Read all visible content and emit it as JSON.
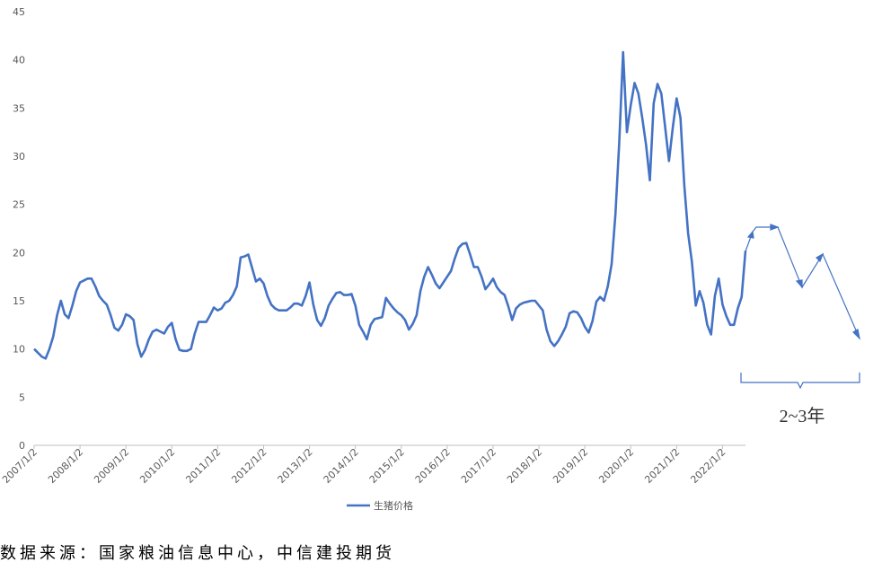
{
  "chart_data": {
    "type": "line",
    "categories": [
      "2007/1/2",
      null,
      null,
      null,
      null,
      null,
      null,
      null,
      null,
      null,
      null,
      null,
      "2008/1/2",
      null,
      null,
      null,
      null,
      null,
      null,
      null,
      null,
      null,
      null,
      null,
      "2009/1/2",
      null,
      null,
      null,
      null,
      null,
      null,
      null,
      null,
      null,
      null,
      null,
      "2010/1/2",
      null,
      null,
      null,
      null,
      null,
      null,
      null,
      null,
      null,
      null,
      null,
      "2011/1/2",
      null,
      null,
      null,
      null,
      null,
      null,
      null,
      null,
      null,
      null,
      null,
      "2012/1/2",
      null,
      null,
      null,
      null,
      null,
      null,
      null,
      null,
      null,
      null,
      null,
      "2013/1/2",
      null,
      null,
      null,
      null,
      null,
      null,
      null,
      null,
      null,
      null,
      null,
      "2014/1/2",
      null,
      null,
      null,
      null,
      null,
      null,
      null,
      null,
      null,
      null,
      null,
      "2015/1/2",
      null,
      null,
      null,
      null,
      null,
      null,
      null,
      null,
      null,
      null,
      null,
      "2016/1/2",
      null,
      null,
      null,
      null,
      null,
      null,
      null,
      null,
      null,
      null,
      null,
      "2017/1/2",
      null,
      null,
      null,
      null,
      null,
      null,
      null,
      null,
      null,
      null,
      null,
      "2018/1/2",
      null,
      null,
      null,
      null,
      null,
      null,
      null,
      null,
      null,
      null,
      null,
      "2019/1/2",
      null,
      null,
      null,
      null,
      null,
      null,
      null,
      null,
      null,
      null,
      null,
      "2020/1/2",
      null,
      null,
      null,
      null,
      null,
      null,
      null,
      null,
      null,
      null,
      null,
      "2021/1/2",
      null,
      null,
      null,
      null,
      null,
      null,
      null,
      null,
      null,
      null,
      null,
      "2022/1/2",
      null,
      null,
      null,
      null,
      null,
      null
    ],
    "series": [
      {
        "name": "生猪价格",
        "color": "#4472c4",
        "values": [
          10,
          9.6,
          9.2,
          9.0,
          10,
          11.3,
          13.5,
          15,
          13.6,
          13.2,
          14.5,
          16,
          16.9,
          17.1,
          17.3,
          17.3,
          16.5,
          15.5,
          15,
          14.6,
          13.5,
          12.2,
          11.9,
          12.5,
          13.6,
          13.4,
          13,
          10.5,
          9.2,
          9.9,
          11,
          11.8,
          12,
          11.8,
          11.6,
          12.3,
          12.7,
          11,
          9.9,
          9.8,
          9.8,
          10,
          11.6,
          12.8,
          12.8,
          12.8,
          13.5,
          14.3,
          14,
          14.2,
          14.8,
          15,
          15.6,
          16.5,
          19.5,
          19.6,
          19.8,
          18.4,
          17,
          17.3,
          16.8,
          15.5,
          14.6,
          14.2,
          14,
          14,
          14,
          14.3,
          14.7,
          14.7,
          14.5,
          15.5,
          16.9,
          14.6,
          13,
          12.4,
          13.2,
          14.5,
          15.2,
          15.8,
          15.9,
          15.6,
          15.6,
          15.7,
          14.5,
          12.5,
          11.8,
          11,
          12.5,
          13.1,
          13.2,
          13.3,
          15.3,
          14.7,
          14.2,
          13.8,
          13.5,
          13,
          12,
          12.6,
          13.5,
          16,
          17.5,
          18.5,
          17.7,
          16.8,
          16.3,
          16.9,
          17.5,
          18.1,
          19.4,
          20.5,
          20.9,
          21,
          19.8,
          18.5,
          18.5,
          17.5,
          16.2,
          16.7,
          17.3,
          16.4,
          15.9,
          15.6,
          14.4,
          13,
          14.2,
          14.6,
          14.8,
          14.9,
          15,
          15,
          14.5,
          14,
          12,
          10.8,
          10.3,
          10.8,
          11.5,
          12.3,
          13.7,
          13.9,
          13.8,
          13.2,
          12.3,
          11.7,
          12.9,
          14.9,
          15.4,
          15,
          16.5,
          18.8,
          24,
          31.5,
          40.8,
          32.5,
          35.3,
          37.6,
          36.5,
          34,
          31.2,
          27.5,
          35.5,
          37.5,
          36.5,
          33,
          29.5,
          33,
          36,
          34,
          27,
          22,
          19,
          14.5,
          16,
          14.8,
          12.5,
          11.5,
          15.5,
          17.3,
          14.6,
          13.4,
          12.5,
          12.5,
          14.2,
          15.4,
          20.2
        ]
      }
    ],
    "ylim": [
      0,
      45
    ],
    "yticks": [
      0,
      5,
      10,
      15,
      20,
      25,
      30,
      35,
      40,
      45
    ],
    "grid": false,
    "legend": "bottom",
    "annotation": "2~3年",
    "source": "数据来源：国家粮油信息中心，中信建投期货"
  }
}
